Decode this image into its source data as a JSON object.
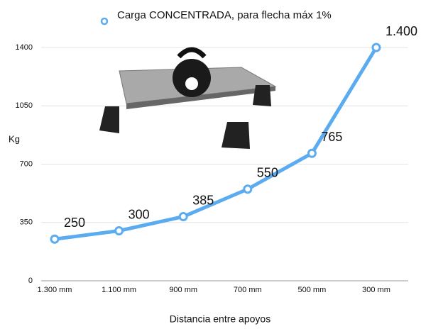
{
  "chart_data": {
    "type": "line",
    "legend": "Carga CONCENTRADA, para flecha máx 1%",
    "x_label": "Distancia entre apoyos",
    "y_label": "Kg",
    "categories": [
      "1.300 mm",
      "1.100 mm",
      "900 mm",
      "700 mm",
      "500 mm",
      "300 mm"
    ],
    "values": [
      250,
      300,
      385,
      550,
      765,
      1400
    ],
    "value_labels": [
      "250",
      "300",
      "385",
      "550",
      "765",
      "1.400"
    ],
    "color": "#5aabf0",
    "ylim": [
      0,
      1400
    ],
    "yticks": [
      0,
      350,
      700,
      1050,
      1400
    ],
    "grid": true
  }
}
